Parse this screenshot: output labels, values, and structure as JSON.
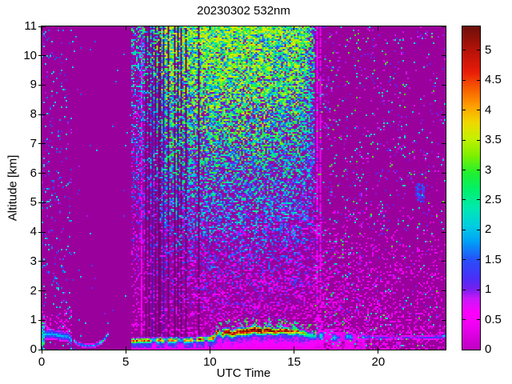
{
  "chart_data": {
    "type": "heatmap",
    "title": "20230302 532nm",
    "xlabel": "UTC Time",
    "ylabel": "Altitude [km]",
    "xlim": [
      0,
      24
    ],
    "ylim": [
      0,
      11
    ],
    "xticks": [
      0,
      5,
      10,
      15,
      20
    ],
    "xtick_labels": [
      "0",
      "5",
      "10",
      "15",
      "20"
    ],
    "yticks": [
      0,
      1,
      2,
      3,
      4,
      5,
      6,
      7,
      8,
      9,
      10,
      11
    ],
    "ytick_labels": [
      "0",
      "1",
      "2",
      "3",
      "4",
      "5",
      "6",
      "7",
      "8",
      "9",
      "10",
      "11"
    ],
    "grid": false,
    "colorbar": {
      "min": 0,
      "max": 5.4,
      "ticks": [
        0,
        0.5,
        1,
        1.5,
        2,
        2.5,
        3,
        3.5,
        4,
        4.5,
        5
      ],
      "tick_labels": [
        "0",
        "0.5",
        "1",
        "1.5",
        "2",
        "2.5",
        "3",
        "3.5",
        "4",
        "4.5",
        "5"
      ],
      "position": "right"
    },
    "colormap_stops": [
      [
        0.0,
        "#C000C4"
      ],
      [
        0.4,
        "#F000F4"
      ],
      [
        0.6,
        "#FF00FF"
      ],
      [
        0.85,
        "#C818F8"
      ],
      [
        1.0,
        "#7820F0"
      ],
      [
        1.2,
        "#4830F8"
      ],
      [
        1.5,
        "#2850F8"
      ],
      [
        1.8,
        "#00A0F8"
      ],
      [
        2.05,
        "#00CCE4"
      ],
      [
        2.35,
        "#00E8B4"
      ],
      [
        2.65,
        "#00F070"
      ],
      [
        2.95,
        "#20F030"
      ],
      [
        3.25,
        "#80F000"
      ],
      [
        3.55,
        "#C8F000"
      ],
      [
        3.8,
        "#F0D800"
      ],
      [
        4.05,
        "#FFA400"
      ],
      [
        4.35,
        "#F86000"
      ],
      [
        4.65,
        "#E81C08"
      ],
      [
        5.0,
        "#B81208"
      ],
      [
        5.4,
        "#6E100A"
      ]
    ],
    "colors": {
      "plot_background": "#9A009C",
      "stripe_dark": "#700076",
      "stripe_blue": "#4C16A8",
      "frame": "#000000"
    },
    "features": {
      "regions": {
        "night_early": {
          "t": [
            0,
            1.78
          ],
          "speckle_density": 0.07,
          "value_range": [
            0.85,
            2.45
          ],
          "pink_below_km": 1.5
        },
        "quiet": {
          "t": [
            1.78,
            5.32
          ],
          "speckle_density": 0.0045,
          "value_range": [
            0.9,
            2.2
          ]
        },
        "daytime_noise": {
          "t": [
            5.32,
            16.25
          ],
          "density_base": 0.2,
          "density_per_km": 0.072,
          "mu_base": 0.45,
          "mu_per_km": 0.24,
          "ramp_full_at": 7.5,
          "fade_from": 15.2
        },
        "evening": {
          "t": [
            16.25,
            24
          ],
          "speckle_density": 0.085,
          "pink_below_km": 5.2
        }
      },
      "stripes": [
        {
          "t": 5.95,
          "w": 0.05,
          "type": "pink"
        },
        {
          "t": 6.18,
          "w": 0.04,
          "type": "dark"
        },
        {
          "t": 6.38,
          "w": 0.05,
          "type": "dark"
        },
        {
          "t": 6.6,
          "w": 0.04,
          "type": "blue"
        },
        {
          "t": 6.82,
          "w": 0.04,
          "type": "dark"
        },
        {
          "t": 7.02,
          "w": 0.05,
          "type": "dark"
        },
        {
          "t": 7.28,
          "w": 0.04,
          "type": "blue"
        },
        {
          "t": 7.55,
          "w": 0.04,
          "type": "dark"
        },
        {
          "t": 7.92,
          "w": 0.05,
          "type": "dark"
        },
        {
          "t": 8.12,
          "w": 0.04,
          "type": "dark"
        },
        {
          "t": 8.32,
          "w": 0.06,
          "type": "dark"
        },
        {
          "t": 8.55,
          "w": 0.04,
          "type": "dark"
        },
        {
          "t": 9.32,
          "w": 0.04,
          "type": "dark"
        },
        {
          "t": 16.38,
          "w": 0.05,
          "type": "pink"
        },
        {
          "t": 16.55,
          "w": 0.04,
          "type": "pink"
        }
      ],
      "boundary_layer_band": {
        "center_km": [
          [
            5.35,
            0.3
          ],
          [
            7.0,
            0.32
          ],
          [
            9.0,
            0.33
          ],
          [
            10.2,
            0.38
          ],
          [
            10.45,
            0.62
          ],
          [
            10.7,
            0.5
          ],
          [
            11.0,
            0.62
          ],
          [
            11.3,
            0.52
          ],
          [
            11.7,
            0.62
          ],
          [
            12.2,
            0.6
          ],
          [
            12.6,
            0.68
          ],
          [
            13.0,
            0.6
          ],
          [
            13.4,
            0.65
          ],
          [
            13.8,
            0.6
          ],
          [
            14.2,
            0.65
          ],
          [
            14.7,
            0.6
          ],
          [
            15.1,
            0.63
          ],
          [
            15.5,
            0.56
          ],
          [
            16.0,
            0.48
          ],
          [
            16.4,
            0.45
          ],
          [
            17.0,
            0.5
          ],
          [
            17.5,
            0.38
          ],
          [
            18.0,
            0.45
          ],
          [
            18.6,
            0.4
          ],
          [
            19.2,
            0.42
          ],
          [
            20.0,
            0.42
          ],
          [
            21.0,
            0.4
          ],
          [
            22.0,
            0.42
          ],
          [
            23.0,
            0.4
          ],
          [
            24.0,
            0.45
          ]
        ],
        "half_width_km": [
          [
            5.35,
            0.1
          ],
          [
            10.0,
            0.11
          ],
          [
            10.5,
            0.15
          ],
          [
            12.5,
            0.17
          ],
          [
            14.0,
            0.14
          ],
          [
            15.5,
            0.12
          ],
          [
            16.3,
            0.15
          ],
          [
            17.0,
            0.18
          ],
          [
            18.5,
            0.15
          ],
          [
            19.5,
            0.07
          ],
          [
            22.0,
            0.06
          ],
          [
            24.0,
            0.09
          ]
        ],
        "peak_value": [
          [
            5.35,
            4.6
          ],
          [
            10.2,
            4.7
          ],
          [
            10.5,
            5.1
          ],
          [
            12.5,
            5.3
          ],
          [
            14.5,
            5.1
          ],
          [
            15.0,
            5.0
          ],
          [
            15.4,
            4.2
          ],
          [
            15.8,
            3.2
          ],
          [
            16.3,
            2.5
          ],
          [
            17.0,
            2.1
          ],
          [
            18.0,
            2.1
          ],
          [
            19.0,
            1.8
          ],
          [
            19.6,
            1.25
          ],
          [
            21.0,
            1.15
          ],
          [
            23.0,
            1.2
          ],
          [
            23.8,
            1.6
          ],
          [
            24.0,
            1.8
          ]
        ],
        "gaps": [
          [
            6.55,
            6.85
          ],
          [
            7.3,
            7.45
          ],
          [
            8.1,
            8.45
          ],
          [
            9.0,
            9.18
          ],
          [
            9.65,
            9.85
          ],
          [
            10.55,
            10.72
          ]
        ],
        "maroon_top_t": [
          10.35,
          15.0
        ],
        "underfill_until_t": 19.3,
        "blob_t": [
          16.3,
          19.2
        ]
      },
      "night_band": {
        "t": [
          0,
          1.78
        ],
        "center_km": 0.48,
        "half_width_km": 0.15,
        "peak": 1.95
      },
      "shallow_line": {
        "t": [
          1.86,
          3.95
        ],
        "center_km": [
          [
            1.86,
            0.34
          ],
          [
            2.2,
            0.18
          ],
          [
            2.7,
            0.12
          ],
          [
            3.1,
            0.13
          ],
          [
            3.45,
            0.22
          ],
          [
            3.7,
            0.33
          ],
          [
            3.85,
            0.46
          ],
          [
            3.95,
            0.52
          ]
        ],
        "half_width_km": 0.05,
        "peak_low": 1.9,
        "peak_high": 2.7
      },
      "launch_column": {
        "t": [
          0,
          0.2
        ],
        "alt_max_km": 0.9,
        "value_range": [
          1.5,
          3.0
        ]
      },
      "blue_patch": {
        "t": 22.5,
        "alt_km": 5.35,
        "t_radius": 0.3,
        "alt_radius_km": 0.35,
        "value_range": [
          1.05,
          1.65
        ]
      }
    }
  }
}
